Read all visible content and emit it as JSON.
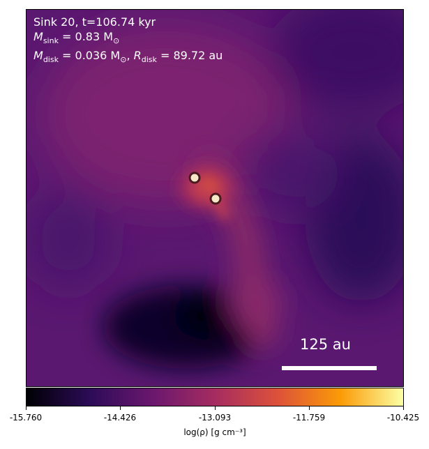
{
  "plot": {
    "sink_line": "Sink 20, t=106.74 kyr",
    "mass_line": {
      "symbol": "M",
      "sub": "sink",
      "value": " = 0.83 M",
      "unit_sub": "⊙"
    },
    "disk_line": {
      "symbol": "M",
      "sub": "disk",
      "value": " = 0.036 M",
      "unit_sub": "⊙",
      "sep": ", ",
      "r_symbol": "R",
      "r_sub": "disk",
      "r_value": " = 89.72 au"
    },
    "scale_label": "125 au",
    "scale_length_au": 125
  },
  "colorbar": {
    "label": "log(ρ) [g cm⁻³]",
    "colormap": [
      "#000004",
      "#2c0b57",
      "#6a176e",
      "#a52c60",
      "#dd513a",
      "#fb9b06",
      "#fcffa4"
    ],
    "ticks": [
      "-15.760",
      "-14.426",
      "-13.093",
      "-11.759",
      "-10.425"
    ]
  },
  "sinks": [
    {
      "name": "sink-1",
      "fill": "#f7e8c8"
    },
    {
      "name": "sink-2",
      "fill": "#f7e8c8"
    }
  ]
}
